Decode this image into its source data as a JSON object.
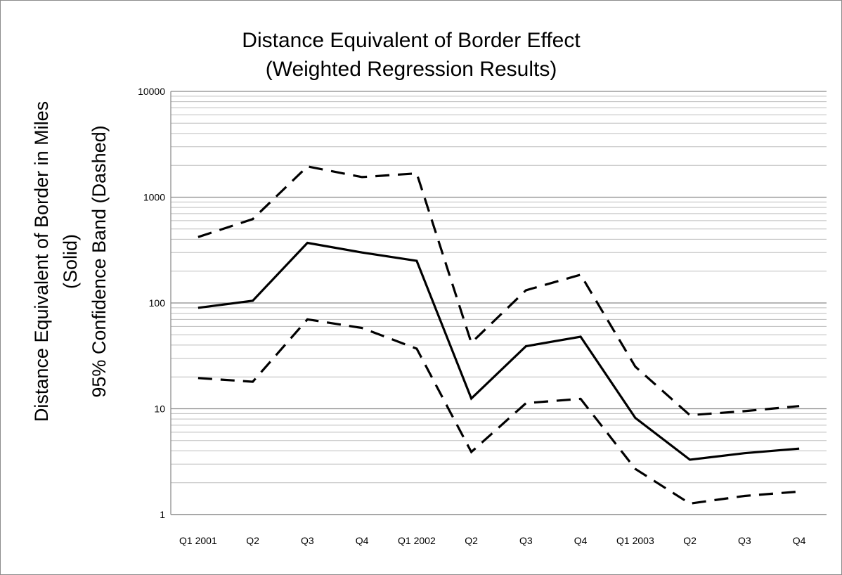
{
  "chart_data": {
    "type": "line",
    "title": "Distance Equivalent of Border Effect",
    "subtitle": "(Weighted Regression Results)",
    "ylabel_line1": "Distance Equivalent of Border in Miles",
    "ylabel_line2": "(Solid)",
    "ylabel_line3": "95% Confidence Band (Dashed)",
    "xlabel": "",
    "yscale": "log",
    "ylim": [
      1,
      10000
    ],
    "yticks": [
      "1",
      "10",
      "100",
      "1000",
      "10000"
    ],
    "grid": "major and minor horizontal",
    "legend": "none",
    "categories": [
      "Q1 2001",
      "Q2",
      "Q3",
      "Q4",
      "Q1 2002",
      "Q2",
      "Q3",
      "Q4",
      "Q1 2003",
      "Q2",
      "Q3",
      "Q4"
    ],
    "series": [
      {
        "style": "solid",
        "color": "#000000",
        "values": [
          90,
          105,
          370,
          300,
          250,
          12.5,
          39,
          48,
          8.2,
          3.3,
          3.8,
          4.2
        ]
      },
      {
        "style": "dashed",
        "color": "#000000",
        "values": [
          420,
          620,
          1950,
          1550,
          1680,
          42,
          132,
          185,
          25,
          8.7,
          9.5,
          10.6
        ]
      },
      {
        "style": "dashed",
        "color": "#000000",
        "values": [
          19.5,
          18,
          70,
          58,
          37,
          3.9,
          11.3,
          12.4,
          2.7,
          1.27,
          1.5,
          1.65
        ]
      }
    ]
  }
}
